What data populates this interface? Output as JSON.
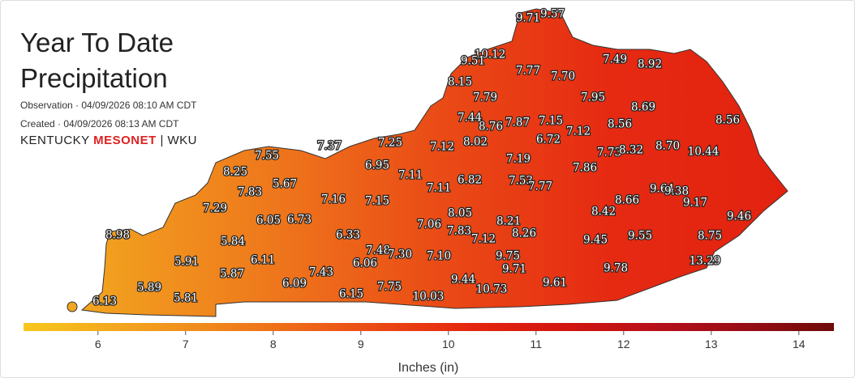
{
  "header": {
    "title": "Year To Date Precipitation",
    "observation": "Observation · 04/09/2026 08:10 AM CDT",
    "created": "Created · 04/09/2026 08:13 AM CDT",
    "logo": {
      "left": "KENTUCKY",
      "brand": "MESONET",
      "partner": "WKU"
    }
  },
  "map": {
    "fill_colors": [
      "#f2a51f",
      "#ef7b1c",
      "#ea4c16",
      "#e62a12",
      "#e2220f"
    ],
    "stations": [
      "9.71",
      "9.57",
      "10.12",
      "9.51",
      "7.77",
      "7.70",
      "7.49",
      "8.92",
      "8.15",
      "7.79",
      "7.95",
      "8.69",
      "7.44",
      "8.76",
      "7.87",
      "7.15",
      "7.12",
      "8.56",
      "8.56",
      "6.72",
      "7.37",
      "7.25",
      "7.12",
      "8.02",
      "7.19",
      "7.73",
      "8.32",
      "8.70",
      "10.44",
      "7.55",
      "6.95",
      "7.11",
      "7.86",
      "8.25",
      "5.67",
      "6.82",
      "7.53",
      "7.77",
      "9.64",
      "9.38",
      "7.83",
      "7.16",
      "7.15",
      "7.11",
      "8.66",
      "9.17",
      "7.29",
      "8.42",
      "8.05",
      "6.05",
      "6.73",
      "9.46",
      "8.21",
      "7.06",
      "7.83",
      "8.26",
      "6.33",
      "5.84",
      "8.98",
      "7.12",
      "9.45",
      "9.55",
      "8.75",
      "7.48",
      "7.30",
      "7.10",
      "9.75",
      "6.11",
      "6.06",
      "5.91",
      "13.29",
      "5.87",
      "7.43",
      "9.71",
      "9.78",
      "6.09",
      "9.44",
      "9.61",
      "5.89",
      "7.75",
      "10.73",
      "6.15",
      "10.03",
      "6.13",
      "5.81"
    ]
  },
  "colorbar": {
    "label": "Inches (in)",
    "range": [
      5.15,
      14.4
    ],
    "ticks": [
      6,
      7,
      8,
      9,
      10,
      11,
      12,
      13,
      14
    ],
    "colors": [
      "#f7c81c",
      "#f3a71e",
      "#f08a1c",
      "#ee6a18",
      "#ea4614",
      "#e5250f",
      "#d2160f",
      "#b8101a",
      "#980d15",
      "#6e0a0a"
    ]
  }
}
